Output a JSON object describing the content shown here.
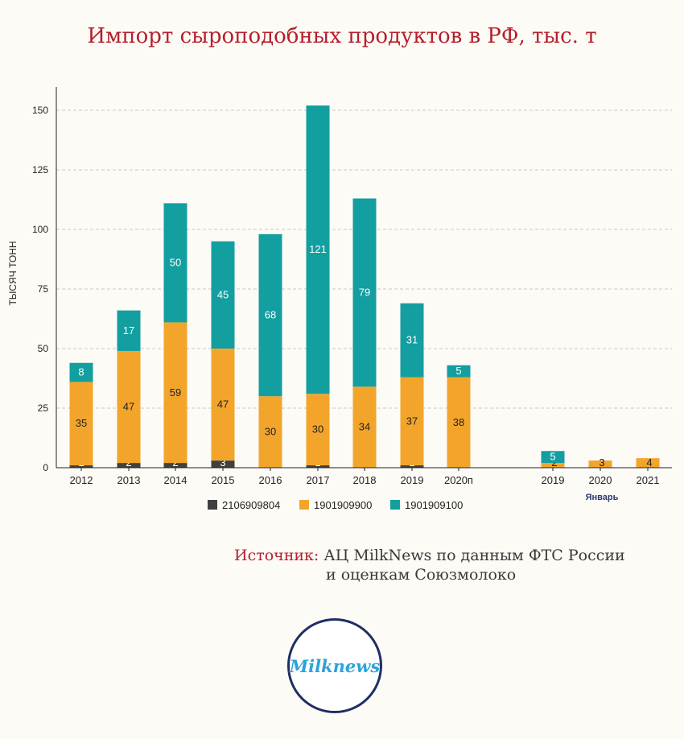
{
  "title": "Импорт сыроподобных продуктов в РФ, тыс. т",
  "source": {
    "label": "Источник:",
    "line1": "АЦ MilkNews по данным ФТС России",
    "line2": "и оценкам Союзмолоко"
  },
  "logo": {
    "text": "Milknews"
  },
  "colors": {
    "2106909804": "#404040",
    "1901909900": "#f3a52b",
    "1901909100": "#139ea0",
    "grid": "#c8c8c8",
    "title": "#b51f2c"
  },
  "chart_data": {
    "type": "bar",
    "stacked": true,
    "ylabel": "ТЫСЯЧ ТОНН",
    "ylim": [
      0,
      160
    ],
    "yticks": [
      0,
      25,
      50,
      75,
      100,
      125,
      150
    ],
    "grid": true,
    "legend_position": "bottom",
    "categories": [
      "2012",
      "2013",
      "2014",
      "2015",
      "2016",
      "2017",
      "2018",
      "2019",
      "2020п",
      "2019",
      "2020",
      "2021"
    ],
    "group_label": "Январь",
    "series": [
      {
        "name": "2106909804",
        "values": [
          1,
          2,
          2,
          3,
          0,
          1,
          0,
          1,
          0,
          0,
          0,
          0
        ],
        "labels": [
          "1",
          "2",
          "2",
          "3",
          "",
          "1",
          "",
          "1",
          "",
          "",
          "",
          ""
        ]
      },
      {
        "name": "1901909900",
        "values": [
          35,
          47,
          59,
          47,
          30,
          30,
          34,
          37,
          38,
          2,
          3,
          4
        ],
        "labels": [
          "35",
          "47",
          "59",
          "47",
          "30",
          "30",
          "34",
          "37",
          "38",
          "2",
          "3",
          "4"
        ]
      },
      {
        "name": "1901909100",
        "values": [
          8,
          17,
          50,
          45,
          68,
          121,
          79,
          31,
          5,
          5,
          0,
          0
        ],
        "labels": [
          "8",
          "17",
          "50",
          "45",
          "68",
          "121",
          "79",
          "31",
          "5",
          "5",
          "",
          ""
        ]
      }
    ]
  }
}
